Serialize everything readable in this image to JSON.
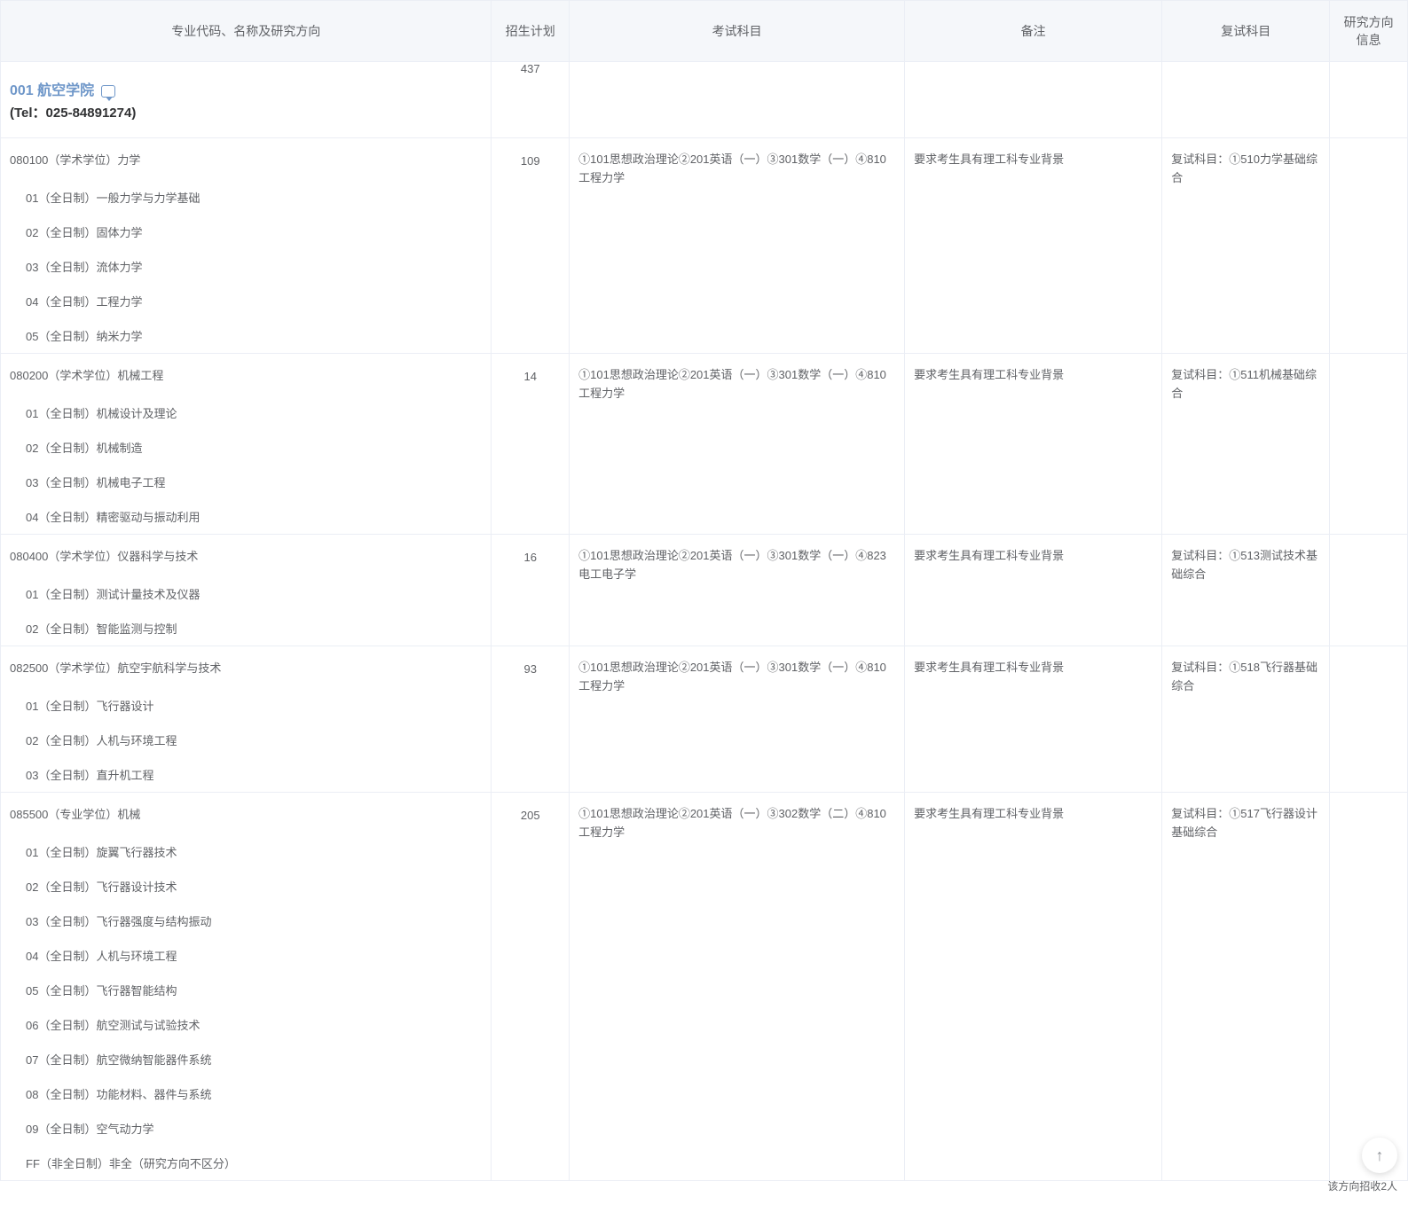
{
  "columns": [
    "专业代码、名称及研究方向",
    "招生计划",
    "考试科目",
    "备注",
    "复试科目",
    "研究方向信息"
  ],
  "school": {
    "name": "001 航空学院",
    "tel_label": "(Tel：025-84891274)",
    "plan": "437"
  },
  "majors": [
    {
      "title": "080100（学术学位）力学",
      "plan": "109",
      "exam": "①101思想政治理论②201英语（一）③301数学（一）④810工程力学",
      "note": "要求考生具有理工科专业背景",
      "retest": "复试科目：①510力学基础综合",
      "directions": [
        "01（全日制）一般力学与力学基础",
        "02（全日制）固体力学",
        "03（全日制）流体力学",
        "04（全日制）工程力学",
        "05（全日制）纳米力学"
      ]
    },
    {
      "title": "080200（学术学位）机械工程",
      "plan": "14",
      "exam": "①101思想政治理论②201英语（一）③301数学（一）④810工程力学",
      "note": "要求考生具有理工科专业背景",
      "retest": "复试科目：①511机械基础综合",
      "directions": [
        "01（全日制）机械设计及理论",
        "02（全日制）机械制造",
        "03（全日制）机械电子工程",
        "04（全日制）精密驱动与振动利用"
      ]
    },
    {
      "title": "080400（学术学位）仪器科学与技术",
      "plan": "16",
      "exam": "①101思想政治理论②201英语（一）③301数学（一）④823电工电子学",
      "note": "要求考生具有理工科专业背景",
      "retest": "复试科目：①513测试技术基础综合",
      "directions": [
        "01（全日制）测试计量技术及仪器",
        "02（全日制）智能监测与控制"
      ]
    },
    {
      "title": "082500（学术学位）航空宇航科学与技术",
      "plan": "93",
      "exam": "①101思想政治理论②201英语（一）③301数学（一）④810工程力学",
      "note": "要求考生具有理工科专业背景",
      "retest": "复试科目：①518飞行器基础综合",
      "directions": [
        "01（全日制）飞行器设计",
        "02（全日制）人机与环境工程",
        "03（全日制）直升机工程"
      ]
    },
    {
      "title": "085500（专业学位）机械",
      "plan": "205",
      "exam": "①101思想政治理论②201英语（一）③302数学（二）④810工程力学",
      "note": "要求考生具有理工科专业背景",
      "retest": "复试科目：①517飞行器设计基础综合",
      "directions": [
        "01（全日制）旋翼飞行器技术",
        "02（全日制）飞行器设计技术",
        "03（全日制）飞行器强度与结构振动",
        "04（全日制）人机与环境工程",
        "05（全日制）飞行器智能结构",
        "06（全日制）航空测试与试验技术",
        "07（全日制）航空微纳智能器件系统",
        "08（全日制）功能材料、器件与系统",
        "09（全日制）空气动力学",
        "FF（非全日制）非全（研究方向不区分）"
      ]
    }
  ],
  "tooltip": "该方向招收2人",
  "scroll_top_glyph": "↑"
}
